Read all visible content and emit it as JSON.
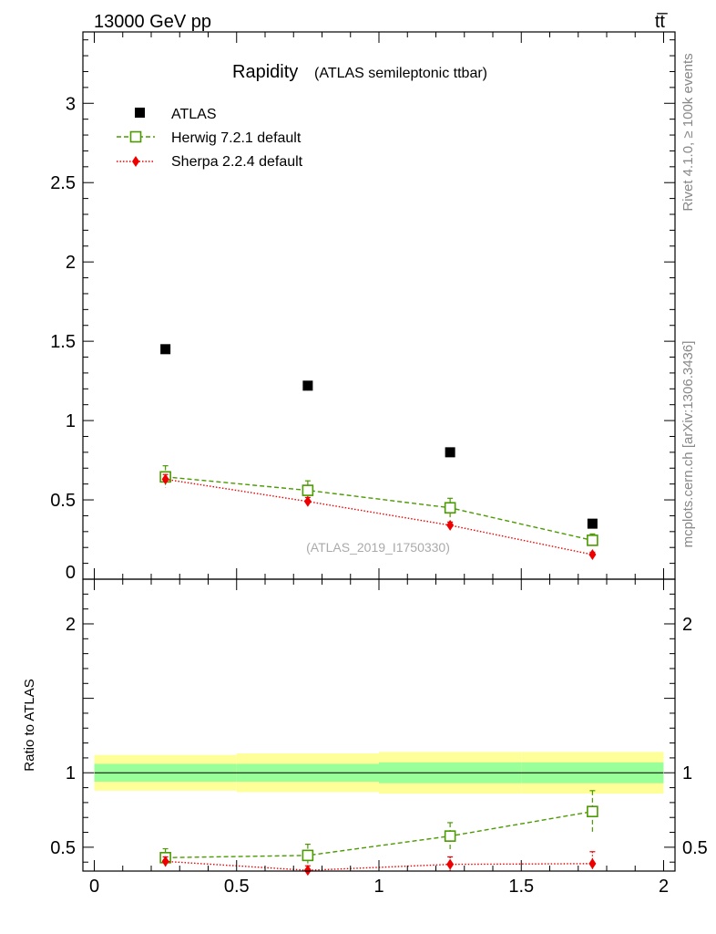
{
  "header": {
    "left": "13000 GeV pp",
    "right": "tt̅"
  },
  "side_labels": {
    "upper": "Rivet 4.1.0, ≥ 100k events",
    "lower": "mcplots.cern.ch [arXiv:1306.3436]"
  },
  "watermark": "(ATLAS_2019_I1750330)",
  "chart_data": [
    {
      "type": "scatter",
      "title": "Rapidity",
      "subtitle": "(ATLAS semileptonic ttbar)",
      "xlabel": "",
      "ylabel": "",
      "xlim": [
        -0.04,
        2.04
      ],
      "ylim": [
        0,
        3.45
      ],
      "yticks": [
        0,
        0.5,
        1,
        1.5,
        2,
        2.5,
        3
      ],
      "ytick_labels": [
        "0",
        "0.5",
        "1",
        "1.5",
        "2",
        "2.5",
        "3"
      ],
      "legend": {
        "placement": "top-left"
      },
      "series": [
        {
          "name": "ATLAS",
          "style": "data",
          "color": "#000000",
          "x": [
            0.25,
            0.75,
            1.25,
            1.75
          ],
          "y": [
            1.45,
            1.22,
            0.8,
            0.35
          ]
        },
        {
          "name": "Herwig 7.2.1 default",
          "style": "open-square-dashed",
          "color": "#4a9a00",
          "x": [
            0.25,
            0.75,
            1.25,
            1.75
          ],
          "y": [
            0.645,
            0.56,
            0.45,
            0.245
          ],
          "err": [
            0.07,
            0.06,
            0.06,
            0.04
          ]
        },
        {
          "name": "Sherpa 2.2.4 default",
          "style": "diamond-dotted",
          "color": "#ee0000",
          "x": [
            0.25,
            0.75,
            1.25,
            1.75
          ],
          "y": [
            0.63,
            0.49,
            0.34,
            0.155
          ],
          "err": [
            0.03,
            0.025,
            0.02,
            0.015
          ]
        }
      ]
    },
    {
      "type": "scatter",
      "title": "",
      "ylabel": "Ratio to ATLAS",
      "xlim": [
        -0.04,
        2.04
      ],
      "ylim": [
        0.34,
        2.3
      ],
      "yticks": [
        0.5,
        1,
        2
      ],
      "ytick_labels": [
        "0.5",
        "1",
        "2"
      ],
      "xticks": [
        0,
        0.5,
        1,
        1.5,
        2
      ],
      "xtick_labels": [
        "0",
        "0.5",
        "1",
        "1.5",
        "2"
      ],
      "bands": [
        {
          "x0": 0.0,
          "x1": 0.5,
          "inner": [
            0.94,
            1.06
          ],
          "outer": [
            0.88,
            1.12
          ]
        },
        {
          "x0": 0.5,
          "x1": 1.0,
          "inner": [
            0.94,
            1.06
          ],
          "outer": [
            0.87,
            1.13
          ]
        },
        {
          "x0": 1.0,
          "x1": 1.5,
          "inner": [
            0.93,
            1.07
          ],
          "outer": [
            0.86,
            1.14
          ]
        },
        {
          "x0": 1.5,
          "x1": 2.0,
          "inner": [
            0.93,
            1.07
          ],
          "outer": [
            0.86,
            1.14
          ]
        }
      ],
      "band_colors": {
        "inner": "#99ff99",
        "outer": "#ffff99"
      },
      "reference": 1,
      "series": [
        {
          "name": "Herwig 7.2.1 default",
          "style": "open-square-dashed",
          "color": "#4a9a00",
          "x": [
            0.25,
            0.75,
            1.25,
            1.75
          ],
          "y": [
            0.43,
            0.445,
            0.575,
            0.74
          ],
          "err": [
            0.06,
            0.075,
            0.09,
            0.14
          ]
        },
        {
          "name": "Sherpa 2.2.4 default",
          "style": "diamond-dotted",
          "color": "#ee0000",
          "x": [
            0.25,
            0.75,
            1.25,
            1.75
          ],
          "y": [
            0.405,
            0.345,
            0.385,
            0.39
          ],
          "err": [
            0.03,
            0.03,
            0.05,
            0.08
          ]
        }
      ]
    }
  ]
}
